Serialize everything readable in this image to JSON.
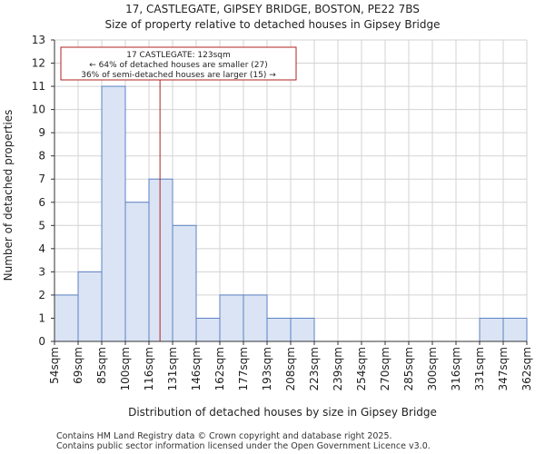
{
  "chart_data": {
    "type": "bar",
    "title_line1": "17, CASTLEGATE, GIPSEY BRIDGE, BOSTON, PE22 7BS",
    "title_line2": "Size of property relative to detached houses in Gipsey Bridge",
    "xlabel": "Distribution of detached houses by size in Gipsey Bridge",
    "ylabel": "Number of detached properties",
    "bin_edges": [
      54,
      69,
      85,
      100,
      116,
      131,
      146,
      162,
      177,
      193,
      208,
      223,
      239,
      254,
      270,
      285,
      300,
      316,
      331,
      347,
      362
    ],
    "bin_labels": [
      "54sqm",
      "69sqm",
      "85sqm",
      "100sqm",
      "116sqm",
      "131sqm",
      "146sqm",
      "162sqm",
      "177sqm",
      "193sqm",
      "208sqm",
      "223sqm",
      "239sqm",
      "254sqm",
      "270sqm",
      "285sqm",
      "300sqm",
      "316sqm",
      "331sqm",
      "347sqm",
      "362sqm"
    ],
    "values": [
      2,
      3,
      11,
      6,
      7,
      5,
      1,
      2,
      2,
      1,
      1,
      0,
      0,
      0,
      0,
      0,
      0,
      0,
      1,
      1
    ],
    "ylim": [
      0,
      13
    ],
    "yticks": [
      0,
      1,
      2,
      3,
      4,
      5,
      6,
      7,
      8,
      9,
      10,
      11,
      12,
      13
    ],
    "grid": true,
    "property_value": 123,
    "annotation": {
      "line1": "17 CASTLEGATE: 123sqm",
      "line2": "← 64% of detached houses are smaller (27)",
      "line3": "36% of semi-detached houses are larger (15) →"
    },
    "colors": {
      "bar_fill": "#dbe4f4",
      "bar_edge": "#5b82c4",
      "marker": "#b22222",
      "grid": "#d3d3d3",
      "axis": "#333333"
    }
  },
  "footer": {
    "line1": "Contains HM Land Registry data © Crown copyright and database right 2025.",
    "line2": "Contains public sector information licensed under the Open Government Licence v3.0."
  }
}
